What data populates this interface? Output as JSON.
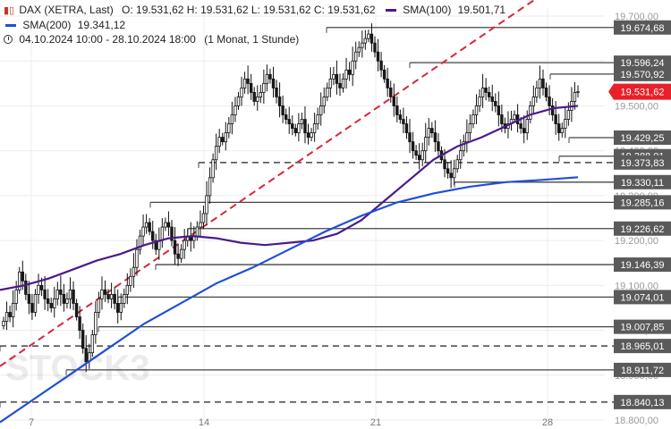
{
  "legend": {
    "instrument": "DAX (XETRA, Last)",
    "ohlc": "O: 19.531,62  H: 19.531,62  L: 19.531,62  C: 19.531,62",
    "sma100_label": "SMA(100)",
    "sma100_value": "19.501,71",
    "sma200_label": "SMA(200)",
    "sma200_value": "19.341,12",
    "period": "04.10.2024 10:00 - 28.10.2024 18:00",
    "interval": "(1 Monat, 1 Stunde)"
  },
  "watermark": "STOCK3",
  "colors": {
    "sma100": "#4b1a8c",
    "sma200": "#1f4fd8",
    "trendline": "#d9263a",
    "price_tag": "#e8202a",
    "candle_up": "#ffffff",
    "candle_down": "#1a1a1a",
    "level_line": "#444444"
  },
  "chart_data": {
    "type": "candlestick",
    "instrument": "DAX (XETRA, Last)",
    "timeframe": "1 Stunde",
    "ylim": [
      18800,
      19720
    ],
    "x_ticks": [
      "7",
      "14",
      "21",
      "28"
    ],
    "y_ticks": [
      19700,
      19600,
      19500,
      19400,
      19300,
      19200,
      19100,
      19000,
      18900,
      18800
    ],
    "y_tick_labels": [
      "19.700,00",
      "19.600,00",
      "19.500,00",
      "19.400,00",
      "19.300,00",
      "19.200,00",
      "19.100,00",
      "19.000,00",
      "18.900,00",
      "18.800,00"
    ],
    "last_price": 19531.62,
    "last_price_label": "19.531,62",
    "levels": [
      {
        "value": 19674.68,
        "label": "19.674,68",
        "style": "solid"
      },
      {
        "value": 19596.24,
        "label": "19.596,24",
        "style": "solid"
      },
      {
        "value": 19570.92,
        "label": "19.570,92",
        "style": "solid"
      },
      {
        "value": 19429.25,
        "label": "19.429,25",
        "style": "solid"
      },
      {
        "value": 19388.01,
        "label": "19.388,01",
        "style": "solid"
      },
      {
        "value": 19373.83,
        "label": "19.373,83",
        "style": "dashed"
      },
      {
        "value": 19330.11,
        "label": "19.330,11",
        "style": "solid"
      },
      {
        "value": 19285.16,
        "label": "19.285,16",
        "style": "solid"
      },
      {
        "value": 19226.62,
        "label": "19.226,62",
        "style": "solid"
      },
      {
        "value": 19146.39,
        "label": "19.146,39",
        "style": "solid"
      },
      {
        "value": 19074.01,
        "label": "19.074,01",
        "style": "solid"
      },
      {
        "value": 19007.85,
        "label": "19.007,85",
        "style": "solid"
      },
      {
        "value": 18965.01,
        "label": "18.965,01",
        "style": "dashed"
      },
      {
        "value": 18911.72,
        "label": "18.911,72",
        "style": "solid"
      },
      {
        "value": 18840.13,
        "label": "18.840,13",
        "style": "dashed"
      }
    ],
    "sma100": [
      19090,
      19100,
      19115,
      19135,
      19155,
      19170,
      19190,
      19205,
      19210,
      19205,
      19195,
      19190,
      19195,
      19200,
      19215,
      19245,
      19290,
      19335,
      19380,
      19410,
      19430,
      19455,
      19480,
      19495,
      19500
    ],
    "sma200": [
      18795,
      18850,
      18905,
      18960,
      19015,
      19060,
      19105,
      19140,
      19180,
      19220,
      19255,
      19285,
      19305,
      19320,
      19330,
      19335,
      19341
    ],
    "trendline": [
      18920,
      19740
    ],
    "candles_close": [
      19020,
      19040,
      19030,
      19060,
      19090,
      19130,
      19110,
      19080,
      19060,
      19040,
      19080,
      19100,
      19090,
      19070,
      19060,
      19050,
      19070,
      19090,
      19080,
      19060,
      19070,
      19090,
      19060,
      19030,
      19000,
      18960,
      18930,
      18950,
      18990,
      19040,
      19070,
      19090,
      19080,
      19070,
      19080,
      19060,
      19040,
      19060,
      19080,
      19100,
      19120,
      19140,
      19180,
      19210,
      19230,
      19240,
      19220,
      19200,
      19180,
      19200,
      19230,
      19240,
      19230,
      19200,
      19170,
      19160,
      19180,
      19200,
      19210,
      19200,
      19210,
      19230,
      19240,
      19260,
      19300,
      19340,
      19380,
      19410,
      19430,
      19420,
      19440,
      19460,
      19480,
      19500,
      19520,
      19540,
      19560,
      19550,
      19530,
      19510,
      19520,
      19530,
      19550,
      19570,
      19560,
      19540,
      19520,
      19500,
      19480,
      19470,
      19460,
      19450,
      19440,
      19460,
      19470,
      19440,
      19430,
      19440,
      19460,
      19480,
      19500,
      19520,
      19540,
      19560,
      19570,
      19550,
      19540,
      19560,
      19580,
      19570,
      19600,
      19620,
      19630,
      19640,
      19650,
      19660,
      19640,
      19620,
      19600,
      19580,
      19560,
      19540,
      19520,
      19500,
      19480,
      19470,
      19460,
      19440,
      19420,
      19400,
      19390,
      19380,
      19400,
      19430,
      19450,
      19440,
      19420,
      19400,
      19380,
      19360,
      19350,
      19340,
      19360,
      19380,
      19400,
      19420,
      19440,
      19460,
      19480,
      19500,
      19520,
      19540,
      19530,
      19520,
      19510,
      19500,
      19480,
      19460,
      19450,
      19460,
      19470,
      19480,
      19460,
      19450,
      19440,
      19470,
      19500,
      19520,
      19540,
      19560,
      19540,
      19520,
      19500,
      19480,
      19460,
      19440,
      19450,
      19470,
      19490,
      19510,
      19530,
      19532
    ]
  }
}
